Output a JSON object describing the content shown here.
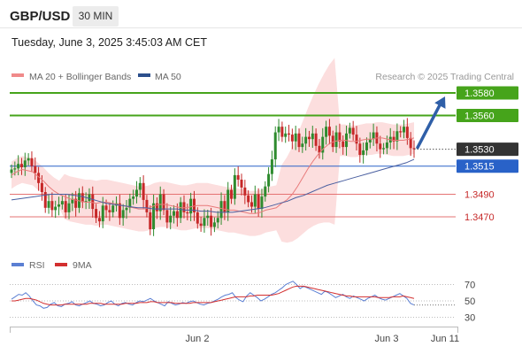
{
  "header": {
    "symbol": "GBP/USD",
    "timeframe": "30 MIN",
    "datetime": "Tuesday, June 3, 2025 3:45:03 AM CET"
  },
  "colors": {
    "up": "#2e8b2e",
    "down": "#c62828",
    "ma20": "#e87b7b",
    "ma50": "#4a5fa0",
    "bollinger": "#fcdede",
    "resistance": "#46a41b",
    "support_blue": "#2962c8",
    "support_red": "#e57373",
    "current_price_bg": "#333333",
    "arrow": "#2f5fa8",
    "rsi": "#5b7fd3",
    "rsi_ma": "#d32f2f"
  },
  "chart_data": [
    {
      "type": "candlestick",
      "legend": [
        {
          "name": "MA 20 + Bollinger Bands",
          "color": "#f08a8a"
        },
        {
          "name": "MA 50",
          "color": "#2c4f8c"
        }
      ],
      "watermark": "Research © 2025 Trading Central",
      "ylim": [
        1.344,
        1.3595
      ],
      "x_ticks": [
        "Jun 2",
        "Jun 3",
        "Jun 11"
      ],
      "candles_close": [
        1.3512,
        1.3513,
        1.3517,
        1.3514,
        1.352,
        1.3522,
        1.3515,
        1.3509,
        1.35,
        1.3492,
        1.3478,
        1.3484,
        1.3476,
        1.3479,
        1.3481,
        1.3484,
        1.3474,
        1.3482,
        1.3486,
        1.3478,
        1.3491,
        1.3483,
        1.3484,
        1.349,
        1.3477,
        1.3469,
        1.3466,
        1.348,
        1.3476,
        1.3474,
        1.348,
        1.3482,
        1.3469,
        1.3476,
        1.3478,
        1.3486,
        1.3488,
        1.3494,
        1.35,
        1.3485,
        1.3474,
        1.3459,
        1.3482,
        1.3475,
        1.349,
        1.3476,
        1.3465,
        1.3471,
        1.3475,
        1.3469,
        1.3483,
        1.3474,
        1.3473,
        1.3486,
        1.3474,
        1.3464,
        1.3462,
        1.3469,
        1.3471,
        1.3461,
        1.3465,
        1.3469,
        1.3484,
        1.3474,
        1.3494,
        1.3486,
        1.3507,
        1.3503,
        1.3496,
        1.3489,
        1.3483,
        1.3479,
        1.349,
        1.3477,
        1.3488,
        1.3497,
        1.3508,
        1.3521,
        1.3545,
        1.355,
        1.3541,
        1.3544,
        1.3543,
        1.3537,
        1.3544,
        1.3532,
        1.3535,
        1.3541,
        1.3539,
        1.3544,
        1.3533,
        1.3527,
        1.3541,
        1.355,
        1.3542,
        1.3532,
        1.3545,
        1.3537,
        1.3532,
        1.3544,
        1.3549,
        1.3543,
        1.3535,
        1.3525,
        1.3529,
        1.3536,
        1.3539,
        1.3545,
        1.3535,
        1.353,
        1.3531,
        1.3536,
        1.3541,
        1.3537,
        1.3546,
        1.3545,
        1.355,
        1.354,
        1.3531,
        1.353
      ],
      "ma20": [
        1.3507,
        1.351,
        1.3512,
        1.3511,
        1.351,
        1.3506,
        1.3502,
        1.3497,
        1.3493,
        1.349,
        1.3488,
        1.3486,
        1.3485,
        1.3484,
        1.3483,
        1.3483,
        1.3482,
        1.3483,
        1.3483,
        1.3482,
        1.3481,
        1.348,
        1.3479,
        1.3478,
        1.3477,
        1.3477,
        1.3478,
        1.348,
        1.3481,
        1.3481,
        1.348,
        1.3479,
        1.3478,
        1.3478,
        1.3479,
        1.348,
        1.348,
        1.348,
        1.3479,
        1.3478,
        1.3477,
        1.3476,
        1.3476,
        1.3475,
        1.3474,
        1.3473,
        1.3473,
        1.3474,
        1.3476,
        1.3477,
        1.3478,
        1.3482,
        1.3485,
        1.349,
        1.3497,
        1.3505,
        1.3513,
        1.352,
        1.3526,
        1.3531,
        1.3535,
        1.3537,
        1.3538,
        1.3538,
        1.3537,
        1.3537,
        1.3538,
        1.3539,
        1.3539,
        1.354,
        1.354,
        1.3539,
        1.3538,
        1.3538,
        1.3538,
        1.3539,
        1.354
      ],
      "ma50": [
        1.3485,
        1.3486,
        1.3487,
        1.3488,
        1.3489,
        1.349,
        1.349,
        1.349,
        1.3489,
        1.3488,
        1.3486,
        1.3484,
        1.3482,
        1.3481,
        1.348,
        1.3479,
        1.3478,
        1.3478,
        1.3477,
        1.3477,
        1.3477,
        1.3477,
        1.3476,
        1.3476,
        1.3475,
        1.3475,
        1.3474,
        1.3474,
        1.3474,
        1.3475,
        1.3476,
        1.3477,
        1.3478,
        1.348,
        1.3482,
        1.3484,
        1.3487,
        1.3489,
        1.3492,
        1.3495,
        1.3498,
        1.35,
        1.3502,
        1.3504,
        1.3506,
        1.3508,
        1.351,
        1.3512,
        1.3514,
        1.3516,
        1.3518,
        1.3521
      ],
      "levels": [
        {
          "label": "1.3580",
          "value": 1.358,
          "kind": "resistance"
        },
        {
          "label": "1.3560",
          "value": 1.356,
          "kind": "resistance"
        },
        {
          "label": "1.3530",
          "value": 1.353,
          "kind": "current"
        },
        {
          "label": "1.3515",
          "value": 1.3515,
          "kind": "pivot"
        },
        {
          "label": "1.3490",
          "value": 1.349,
          "kind": "support"
        },
        {
          "label": "1.3470",
          "value": 1.347,
          "kind": "support"
        }
      ],
      "arrow_target": 1.358
    },
    {
      "type": "line",
      "legend": [
        {
          "name": "RSI",
          "color": "#5b7fd3"
        },
        {
          "name": "9MA",
          "color": "#d32f2f"
        }
      ],
      "ylim": [
        25,
        78
      ],
      "y_ticks": [
        "70",
        "50",
        "30"
      ],
      "rsi": [
        52,
        55,
        58,
        57,
        60,
        56,
        50,
        45,
        44,
        41,
        42,
        46,
        48,
        44,
        43,
        46,
        47,
        49,
        45,
        44,
        46,
        48,
        50,
        47,
        46,
        44,
        45,
        48,
        50,
        46,
        44,
        47,
        48,
        46,
        45,
        48,
        50,
        49,
        51,
        53,
        50,
        48,
        46,
        44,
        49,
        47,
        45,
        46,
        48,
        47,
        49,
        50,
        48,
        46,
        45,
        47,
        48,
        50,
        52,
        55,
        57,
        58,
        60,
        54,
        51,
        49,
        56,
        60,
        57,
        54,
        50,
        52,
        55,
        58,
        60,
        63,
        66,
        70,
        72,
        74,
        70,
        65,
        68,
        66,
        64,
        62,
        60,
        58,
        62,
        60,
        57,
        54,
        56,
        58,
        55,
        53,
        56,
        54,
        52,
        50,
        53,
        55,
        57,
        54,
        52,
        51,
        53,
        55,
        57,
        59,
        56,
        53,
        47,
        45
      ],
      "rsi_ma": [
        50,
        50,
        51,
        52,
        53,
        53,
        52,
        51,
        49,
        47,
        46,
        45,
        45,
        45,
        45,
        46,
        46,
        46,
        46,
        46,
        46,
        46,
        47,
        47,
        47,
        47,
        46,
        46,
        46,
        46,
        46,
        46,
        47,
        47,
        47,
        47,
        48,
        48,
        48,
        49,
        49,
        48,
        48,
        48,
        48,
        48,
        47,
        47,
        47,
        47,
        47,
        48,
        48,
        48,
        48,
        48,
        48,
        49,
        50,
        51,
        52,
        53,
        54,
        55,
        55,
        55,
        55,
        56,
        56,
        57,
        57,
        57,
        57,
        57,
        58,
        59,
        61,
        63,
        65,
        67,
        68,
        68,
        68,
        67,
        66,
        65,
        64,
        63,
        62,
        61,
        60,
        59,
        58,
        57,
        56,
        56,
        55,
        55,
        55,
        55,
        55,
        55,
        55,
        54,
        54,
        54,
        54,
        55,
        55,
        55,
        56,
        55,
        54,
        53
      ]
    }
  ]
}
